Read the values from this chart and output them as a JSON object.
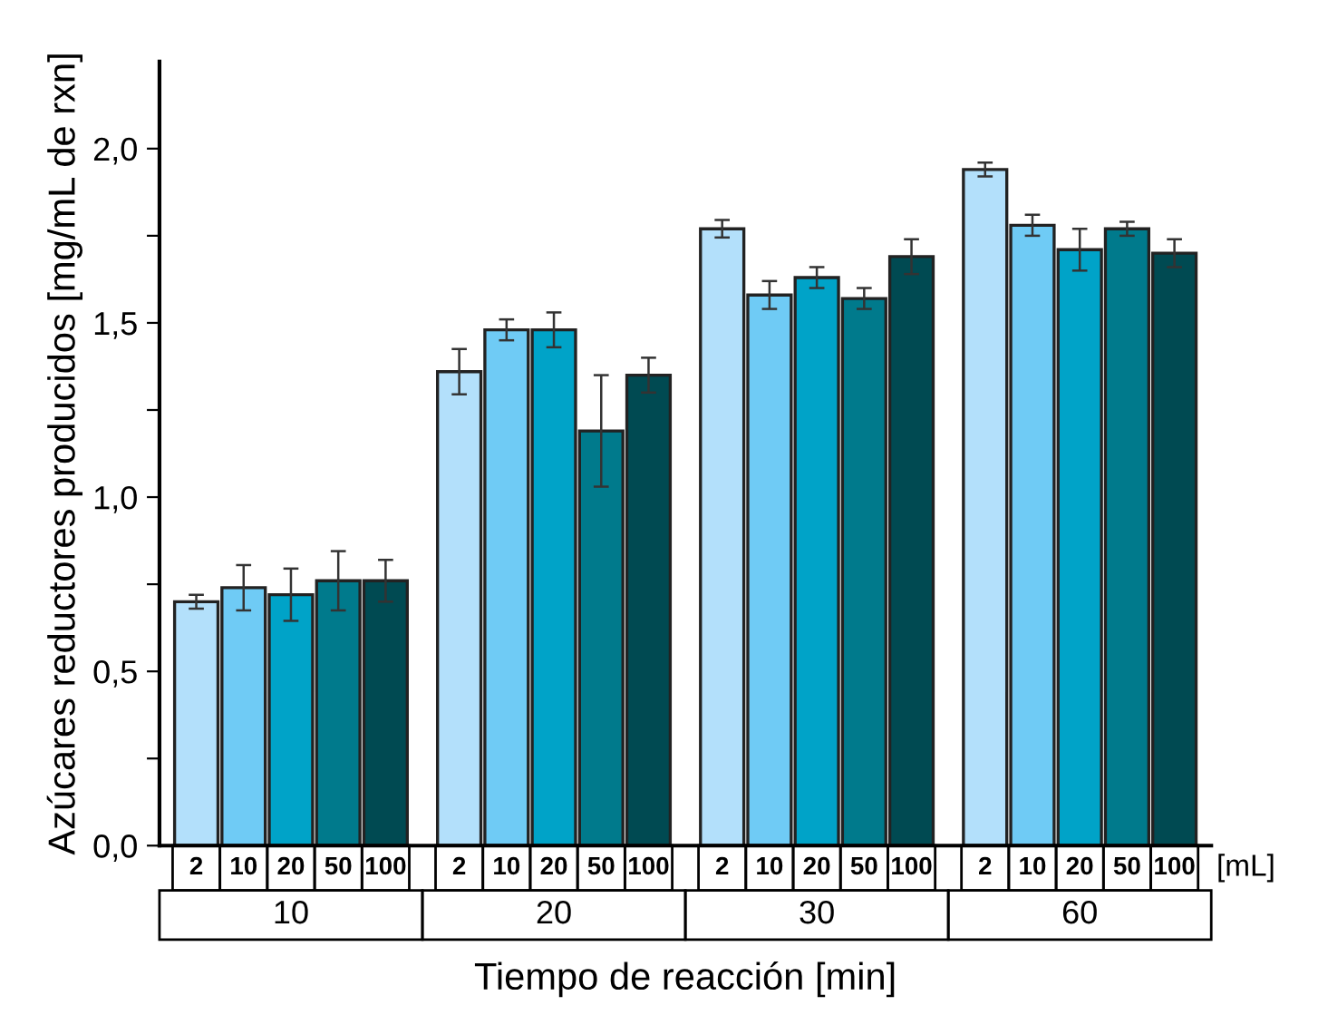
{
  "chart_data": {
    "type": "bar",
    "xlabel": "Tiempo de reacción [min]",
    "ylabel": "Azúcares reductores producidos [mg/mL de rxn]",
    "categories": [
      "10",
      "20",
      "30",
      "60"
    ],
    "ylim": [
      0,
      2.25
    ],
    "yticks": [
      {
        "value": 0,
        "label": "0,0"
      },
      {
        "value": 0.25,
        "label": null
      },
      {
        "value": 0.5,
        "label": "0,5"
      },
      {
        "value": 0.75,
        "label": null
      },
      {
        "value": 1.0,
        "label": "1,0"
      },
      {
        "value": 1.25,
        "label": null
      },
      {
        "value": 1.5,
        "label": "1,5"
      },
      {
        "value": 1.75,
        "label": null
      },
      {
        "value": 2.0,
        "label": "2,0"
      }
    ],
    "grid": false,
    "legend": false,
    "annotations": [
      "[mL]"
    ],
    "series": [
      {
        "name": "2",
        "color": "#b3e0fb",
        "values": [
          0.7,
          1.36,
          1.77,
          1.94
        ],
        "errors": [
          0.02,
          0.065,
          0.025,
          0.02
        ]
      },
      {
        "name": "10",
        "color": "#6fcbf5",
        "values": [
          0.74,
          1.48,
          1.58,
          1.78
        ],
        "errors": [
          0.065,
          0.03,
          0.04,
          0.03
        ]
      },
      {
        "name": "20",
        "color": "#00a3c8",
        "values": [
          0.72,
          1.48,
          1.63,
          1.71
        ],
        "errors": [
          0.075,
          0.05,
          0.03,
          0.06
        ]
      },
      {
        "name": "50",
        "color": "#007a8c",
        "values": [
          0.76,
          1.19,
          1.57,
          1.77
        ],
        "errors": [
          0.085,
          0.16,
          0.03,
          0.02
        ]
      },
      {
        "name": "100",
        "color": "#004a52",
        "values": [
          0.76,
          1.35,
          1.69,
          1.7
        ],
        "errors": [
          0.06,
          0.05,
          0.05,
          0.04
        ]
      }
    ]
  }
}
